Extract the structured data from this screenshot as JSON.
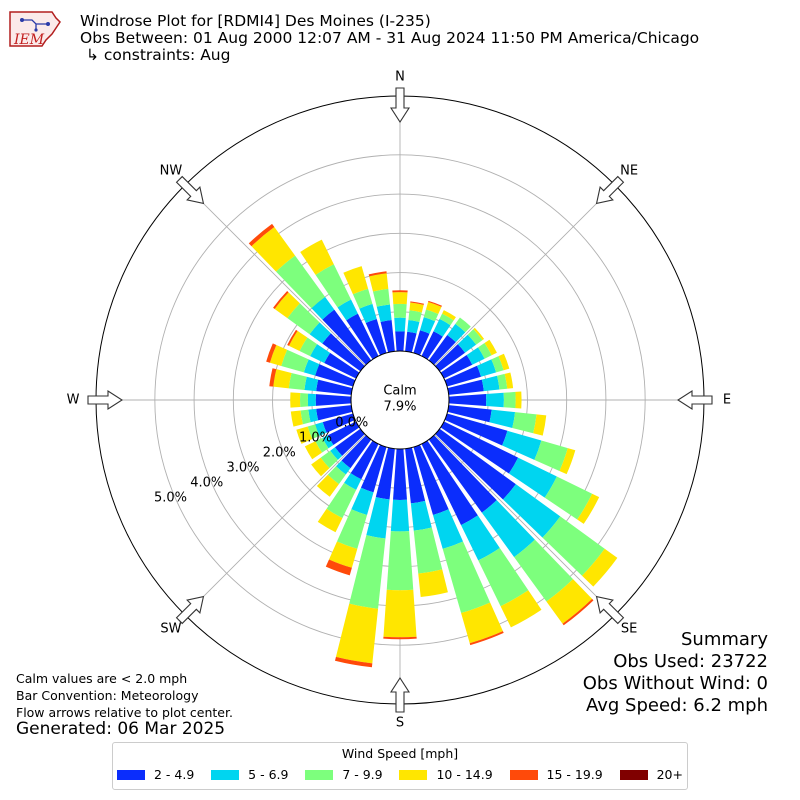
{
  "header": {
    "title": "Windrose Plot for [RDMI4] Des Moines (I-235)",
    "obs_between": "Obs Between: 01 Aug 2000 12:07 AM - 31 Aug 2024 11:50 PM America/Chicago",
    "constraints": "↳ constraints: Aug",
    "logo_text": "IEM"
  },
  "summary": {
    "title": "Summary",
    "obs_used": "Obs Used: 23722",
    "obs_without_wind": "Obs Without Wind: 0",
    "avg_speed": "Avg Speed: 6.2 mph"
  },
  "footnotes": {
    "calm_note": "Calm values are < 2.0 mph",
    "bar_convention": "Bar Convention: Meteorology",
    "flow_arrows": "Flow arrows relative to plot center.",
    "generated": "Generated: 06 Mar 2025"
  },
  "legend": {
    "title": "Wind Speed [mph]"
  },
  "chart_data": {
    "type": "windrose",
    "calm_label": "Calm",
    "calm_percent": 7.9,
    "calm_text": "7.9%",
    "radial_ticks": [
      0,
      1,
      2,
      3,
      4,
      5
    ],
    "radial_tick_labels": [
      "0.0%",
      "1.0%",
      "2.0%",
      "3.0%",
      "4.0%",
      "5.0%"
    ],
    "r_max": 6.5,
    "grid": true,
    "legend_placement": "bottom-center",
    "compass_labels": [
      "N",
      "NE",
      "E",
      "SE",
      "S",
      "SW",
      "W",
      "NW"
    ],
    "speed_bins": [
      {
        "label": "2 - 4.9",
        "color": "#0b2dfc"
      },
      {
        "label": "5 - 6.9",
        "color": "#00d5f0"
      },
      {
        "label": "7 - 9.9",
        "color": "#7dff7d"
      },
      {
        "label": "10 - 14.9",
        "color": "#ffe600"
      },
      {
        "label": "15 - 19.9",
        "color": "#ff4a0a"
      },
      {
        "label": "20+",
        "color": "#800000"
      }
    ],
    "sectors": [
      {
        "dir": 0,
        "values": [
          0.5,
          0.35,
          0.35,
          0.3,
          0.05,
          0.0
        ]
      },
      {
        "dir": 10,
        "values": [
          0.5,
          0.3,
          0.25,
          0.2,
          0.03,
          0.0
        ]
      },
      {
        "dir": 20,
        "values": [
          0.6,
          0.35,
          0.2,
          0.2,
          0.03,
          0.0
        ]
      },
      {
        "dir": 30,
        "values": [
          0.7,
          0.35,
          0.15,
          0.1,
          0.0,
          0.0
        ]
      },
      {
        "dir": 40,
        "values": [
          0.8,
          0.35,
          0.2,
          0.0,
          0.0,
          0.0
        ]
      },
      {
        "dir": 50,
        "values": [
          0.8,
          0.35,
          0.2,
          0.05,
          0.0,
          0.0
        ]
      },
      {
        "dir": 60,
        "values": [
          0.8,
          0.35,
          0.2,
          0.15,
          0.0,
          0.0
        ]
      },
      {
        "dir": 70,
        "values": [
          0.9,
          0.4,
          0.2,
          0.15,
          0.0,
          0.0
        ]
      },
      {
        "dir": 80,
        "values": [
          0.9,
          0.4,
          0.2,
          0.15,
          0.0,
          0.0
        ]
      },
      {
        "dir": 90,
        "values": [
          0.95,
          0.45,
          0.3,
          0.15,
          0.0,
          0.0
        ]
      },
      {
        "dir": 100,
        "values": [
          1.1,
          0.6,
          0.55,
          0.25,
          0.0,
          0.0
        ]
      },
      {
        "dir": 110,
        "values": [
          1.6,
          0.9,
          0.7,
          0.2,
          0.0,
          0.0
        ]
      },
      {
        "dir": 120,
        "values": [
          2.1,
          1.1,
          1.0,
          0.2,
          0.0,
          0.0
        ]
      },
      {
        "dir": 130,
        "values": [
          2.4,
          1.4,
          1.4,
          0.4,
          0.0,
          0.0
        ]
      },
      {
        "dir": 140,
        "values": [
          2.3,
          1.4,
          1.4,
          0.7,
          0.05,
          0.0
        ]
      },
      {
        "dir": 150,
        "values": [
          2.3,
          1.0,
          1.3,
          0.6,
          0.0,
          0.0
        ]
      },
      {
        "dir": 160,
        "values": [
          1.8,
          0.9,
          1.7,
          0.8,
          0.05,
          0.0
        ]
      },
      {
        "dir": 170,
        "values": [
          1.4,
          0.7,
          1.1,
          0.6,
          0.0,
          0.0
        ]
      },
      {
        "dir": 180,
        "values": [
          1.3,
          0.8,
          1.5,
          1.2,
          0.05,
          0.0
        ]
      },
      {
        "dir": 190,
        "values": [
          1.3,
          1.0,
          1.8,
          1.4,
          0.1,
          0.0
        ]
      },
      {
        "dir": 200,
        "values": [
          1.2,
          0.6,
          0.9,
          0.5,
          0.2,
          0.0
        ]
      },
      {
        "dir": 210,
        "values": [
          1.0,
          0.3,
          0.8,
          0.4,
          0.0,
          0.0
        ]
      },
      {
        "dir": 220,
        "values": [
          0.9,
          0.2,
          0.3,
          0.4,
          0.0,
          0.0
        ]
      },
      {
        "dir": 230,
        "values": [
          0.8,
          0.15,
          0.3,
          0.3,
          0.0,
          0.0
        ]
      },
      {
        "dir": 240,
        "values": [
          0.8,
          0.15,
          0.2,
          0.3,
          0.0,
          0.0
        ]
      },
      {
        "dir": 250,
        "values": [
          0.8,
          0.2,
          0.2,
          0.3,
          0.0,
          0.0
        ]
      },
      {
        "dir": 260,
        "values": [
          0.9,
          0.2,
          0.2,
          0.25,
          0.0,
          0.0
        ]
      },
      {
        "dir": 270,
        "values": [
          0.9,
          0.2,
          0.2,
          0.25,
          0.0,
          0.0
        ]
      },
      {
        "dir": 280,
        "values": [
          0.9,
          0.3,
          0.4,
          0.4,
          0.1,
          0.0
        ]
      },
      {
        "dir": 290,
        "values": [
          1.0,
          0.3,
          0.6,
          0.3,
          0.1,
          0.0
        ]
      },
      {
        "dir": 300,
        "values": [
          0.9,
          0.4,
          0.3,
          0.3,
          0.05,
          0.0
        ]
      },
      {
        "dir": 310,
        "values": [
          1.2,
          0.4,
          0.7,
          0.4,
          0.05,
          0.0
        ]
      },
      {
        "dir": 320,
        "values": [
          1.6,
          0.4,
          1.3,
          0.9,
          0.1,
          0.0
        ]
      },
      {
        "dir": 330,
        "values": [
          1.2,
          0.4,
          1.0,
          0.7,
          0.0,
          0.0
        ]
      },
      {
        "dir": 340,
        "values": [
          0.9,
          0.4,
          0.4,
          0.6,
          0.0,
          0.0
        ]
      },
      {
        "dir": 350,
        "values": [
          0.8,
          0.4,
          0.4,
          0.4,
          0.05,
          0.0
        ]
      }
    ]
  }
}
